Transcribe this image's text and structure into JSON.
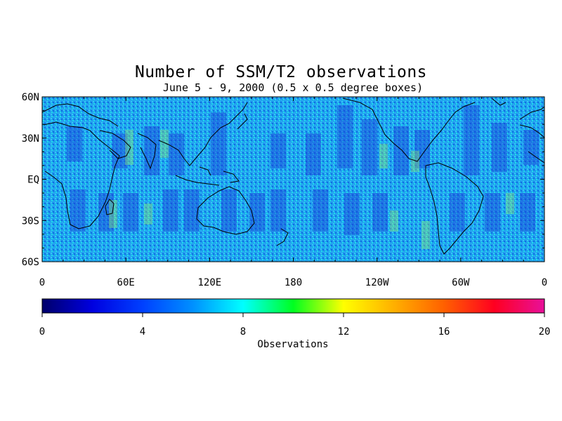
{
  "map": {
    "title": "Number of SSM/T2 observations",
    "subtitle": "June 5 - 9, 2000 (0.5 x 0.5 degree boxes)",
    "projection": "equirectangular",
    "lon_range": [
      0,
      360
    ],
    "lat_range": [
      -60,
      60
    ],
    "lat_tick_labels": [
      "60N",
      "30N",
      "EQ",
      "30S",
      "60S"
    ],
    "lat_tick_values": [
      60,
      30,
      0,
      -30,
      -60
    ],
    "lon_tick_labels": [
      "0",
      "60E",
      "120E",
      "180",
      "120W",
      "60W",
      "0"
    ],
    "lon_tick_values": [
      0,
      60,
      120,
      180,
      240,
      300,
      360
    ],
    "coastlines": "black outline"
  },
  "colorbar": {
    "label": "Observations",
    "tick_labels": [
      "0",
      "4",
      "8",
      "12",
      "16",
      "20"
    ],
    "tick_values": [
      0,
      4,
      8,
      12,
      16,
      20
    ],
    "range": [
      0,
      20
    ],
    "colors": [
      "#00006a",
      "#0000ff",
      "#00a0ff",
      "#00ffff",
      "#00ff00",
      "#ffff00",
      "#ff9900",
      "#ff0000",
      "#ff0099",
      "#e8109a"
    ]
  }
}
